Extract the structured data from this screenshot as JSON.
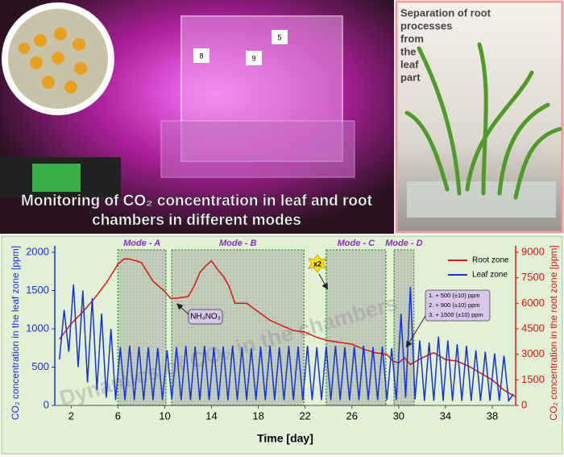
{
  "photo_left": {
    "caption": [
      "Monitoring of CO₂ concentration in leaf and root",
      "chambers in different modes"
    ],
    "screen_labels": [
      "5",
      "8",
      "9"
    ]
  },
  "photo_right": {
    "caption": [
      "Separation of root",
      "processes",
      "from",
      "the",
      "leaf",
      "part"
    ]
  },
  "chart_data": {
    "type": "line",
    "xlabel": "Time [day]",
    "ylabel": "CO₂ concentration in the leaf zone [ppm]",
    "y2label": "CO₂ concentration in the root zone [ppm]",
    "xlim": [
      0.6,
      40
    ],
    "xticks": [
      2,
      6,
      10,
      14,
      18,
      22,
      26,
      30,
      34,
      38
    ],
    "ylim": [
      0,
      2000
    ],
    "yticks": [
      0,
      500,
      1000,
      1500,
      2000
    ],
    "y2lim": [
      0,
      9000
    ],
    "y2ticks": [
      0,
      1500,
      3000,
      4500,
      6000,
      7500,
      9000
    ],
    "legend": "upper right",
    "series": [
      {
        "name": "Root zone",
        "color": "#e31414",
        "axis": "y2",
        "x": [
          1,
          2,
          3,
          4,
          5,
          6,
          6.5,
          7,
          8,
          9,
          10,
          10.5,
          11,
          12,
          12.5,
          13,
          13.5,
          14,
          14.5,
          15,
          15.5,
          16,
          17,
          18,
          19,
          20,
          21,
          22,
          23,
          24,
          25,
          26,
          27,
          28,
          29,
          29.5,
          30,
          30.5,
          31,
          32,
          33,
          34,
          35,
          36,
          37,
          38,
          39,
          40
        ],
        "values": [
          3900,
          4800,
          5500,
          6300,
          7200,
          8300,
          8600,
          8600,
          8400,
          7300,
          6700,
          6300,
          6300,
          6400,
          7000,
          7800,
          8200,
          8500,
          8000,
          7600,
          7000,
          6000,
          6000,
          5500,
          5000,
          4700,
          4400,
          4300,
          4000,
          3800,
          3700,
          3600,
          3300,
          3100,
          3000,
          2600,
          2500,
          2800,
          2400,
          2800,
          3100,
          2700,
          2600,
          2300,
          1900,
          1500,
          900,
          500
        ]
      },
      {
        "name": "Leaf zone",
        "color": "#1530e0",
        "x": [
          1,
          1.4,
          1.8,
          2.2,
          2.6,
          3,
          3.4,
          3.8,
          4.2,
          4.6,
          5,
          5.4,
          5.8,
          6.2,
          6.6,
          7,
          7.4,
          7.8,
          8.2,
          8.6,
          9,
          9.4,
          9.8,
          10.2,
          10.6,
          11,
          11.4,
          11.8,
          12.2,
          12.6,
          13,
          13.4,
          13.8,
          14.2,
          14.6,
          15,
          15.4,
          15.8,
          16.2,
          16.6,
          17,
          17.4,
          17.8,
          18.2,
          18.6,
          19,
          19.4,
          19.8,
          20.2,
          20.6,
          21,
          21.4,
          21.8,
          22.2,
          22.6,
          23,
          23.4,
          23.8,
          24.2,
          24.6,
          25,
          25.4,
          25.8,
          26.2,
          26.6,
          27,
          27.4,
          27.8,
          28.2,
          28.6,
          29,
          29.4,
          29.8,
          30.2,
          30.6,
          31,
          31.4,
          31.8,
          32.2,
          32.6,
          33,
          33.4,
          33.8,
          34.2,
          34.6,
          35,
          35.4,
          35.8,
          36.2,
          36.6,
          37,
          37.4,
          37.8,
          38.2,
          38.6,
          39,
          39.4,
          39.8
        ],
        "values": [
          600,
          1250,
          700,
          1580,
          500,
          1500,
          300,
          1400,
          200,
          1200,
          100,
          1000,
          70,
          760,
          70,
          780,
          70,
          770,
          70,
          760,
          70,
          750,
          70,
          720,
          80,
          760,
          70,
          780,
          70,
          770,
          70,
          780,
          70,
          760,
          70,
          770,
          70,
          780,
          70,
          760,
          70,
          750,
          70,
          770,
          70,
          780,
          70,
          760,
          70,
          780,
          70,
          770,
          70,
          780,
          70,
          760,
          70,
          770,
          70,
          780,
          70,
          760,
          70,
          770,
          70,
          780,
          70,
          760,
          70,
          770,
          70,
          750,
          70,
          1200,
          100,
          1550,
          80,
          850,
          60,
          820,
          60,
          900,
          60,
          850,
          60,
          800,
          60,
          780,
          60,
          720,
          60,
          700,
          60,
          680,
          60,
          650,
          60,
          150
        ]
      }
    ],
    "modes": [
      {
        "label": "Mode - A",
        "start": 6.0,
        "end": 10.1
      },
      {
        "label": "Mode - B",
        "start": 10.6,
        "end": 21.9
      },
      {
        "label": "Mode - C",
        "start": 23.8,
        "end": 28.9
      },
      {
        "label": "Mode - D",
        "start": 29.6,
        "end": 31.3
      }
    ],
    "annotations": {
      "fertilizer": "NH₄NO₃",
      "multiplier": "x2",
      "additions": [
        "1. + 500 (±10) ppm",
        "2. + 900 (±10) ppm",
        "3. + 1500 (±10) ppm"
      ]
    },
    "watermark": "Dynamics of CO₂ in the chambers"
  }
}
